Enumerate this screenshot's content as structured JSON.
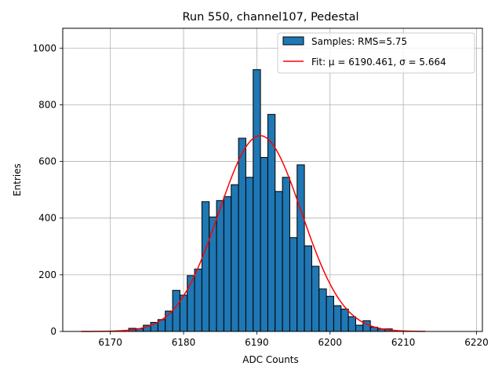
{
  "chart_data": {
    "type": "bar",
    "title": "Run 550, channel107, Pedestal",
    "xlabel": "ADC Counts",
    "ylabel": "Entries",
    "xlim": [
      6163.5,
      6220.8
    ],
    "ylim": [
      0,
      1070
    ],
    "xticks": [
      6170,
      6180,
      6190,
      6200,
      6210,
      6220
    ],
    "yticks": [
      0,
      200,
      400,
      600,
      800,
      1000
    ],
    "grid": true,
    "legend_position": "top-right",
    "bin_width": 1,
    "bins": [
      {
        "x": 6173,
        "value": 11
      },
      {
        "x": 6174,
        "value": 10
      },
      {
        "x": 6175,
        "value": 22
      },
      {
        "x": 6176,
        "value": 32
      },
      {
        "x": 6177,
        "value": 42
      },
      {
        "x": 6178,
        "value": 72
      },
      {
        "x": 6179,
        "value": 145
      },
      {
        "x": 6180,
        "value": 128
      },
      {
        "x": 6181,
        "value": 197
      },
      {
        "x": 6182,
        "value": 220
      },
      {
        "x": 6183,
        "value": 458
      },
      {
        "x": 6184,
        "value": 404
      },
      {
        "x": 6185,
        "value": 462
      },
      {
        "x": 6186,
        "value": 476
      },
      {
        "x": 6187,
        "value": 518
      },
      {
        "x": 6188,
        "value": 682
      },
      {
        "x": 6189,
        "value": 544
      },
      {
        "x": 6190,
        "value": 924
      },
      {
        "x": 6191,
        "value": 614
      },
      {
        "x": 6192,
        "value": 766
      },
      {
        "x": 6193,
        "value": 494
      },
      {
        "x": 6194,
        "value": 544
      },
      {
        "x": 6195,
        "value": 331
      },
      {
        "x": 6196,
        "value": 588
      },
      {
        "x": 6197,
        "value": 302
      },
      {
        "x": 6198,
        "value": 230
      },
      {
        "x": 6199,
        "value": 150
      },
      {
        "x": 6200,
        "value": 124
      },
      {
        "x": 6201,
        "value": 91
      },
      {
        "x": 6202,
        "value": 79
      },
      {
        "x": 6203,
        "value": 52
      },
      {
        "x": 6204,
        "value": 22
      },
      {
        "x": 6205,
        "value": 38
      },
      {
        "x": 6206,
        "value": 15
      },
      {
        "x": 6207,
        "value": 9
      },
      {
        "x": 6208,
        "value": 9
      }
    ],
    "fit": {
      "mu": 6190.461,
      "sigma": 5.664,
      "peak": 691,
      "x_range": [
        6166,
        6213
      ]
    },
    "legend": [
      {
        "label": "Samples: RMS=5.75",
        "kind": "patch"
      },
      {
        "label": "Fit: μ = 6190.461, σ = 5.664",
        "kind": "line"
      }
    ],
    "colors": {
      "bar": "#1f77b4",
      "bar_edge": "#000000",
      "fit": "#ff0000",
      "grid": "#b0b0b0"
    }
  }
}
